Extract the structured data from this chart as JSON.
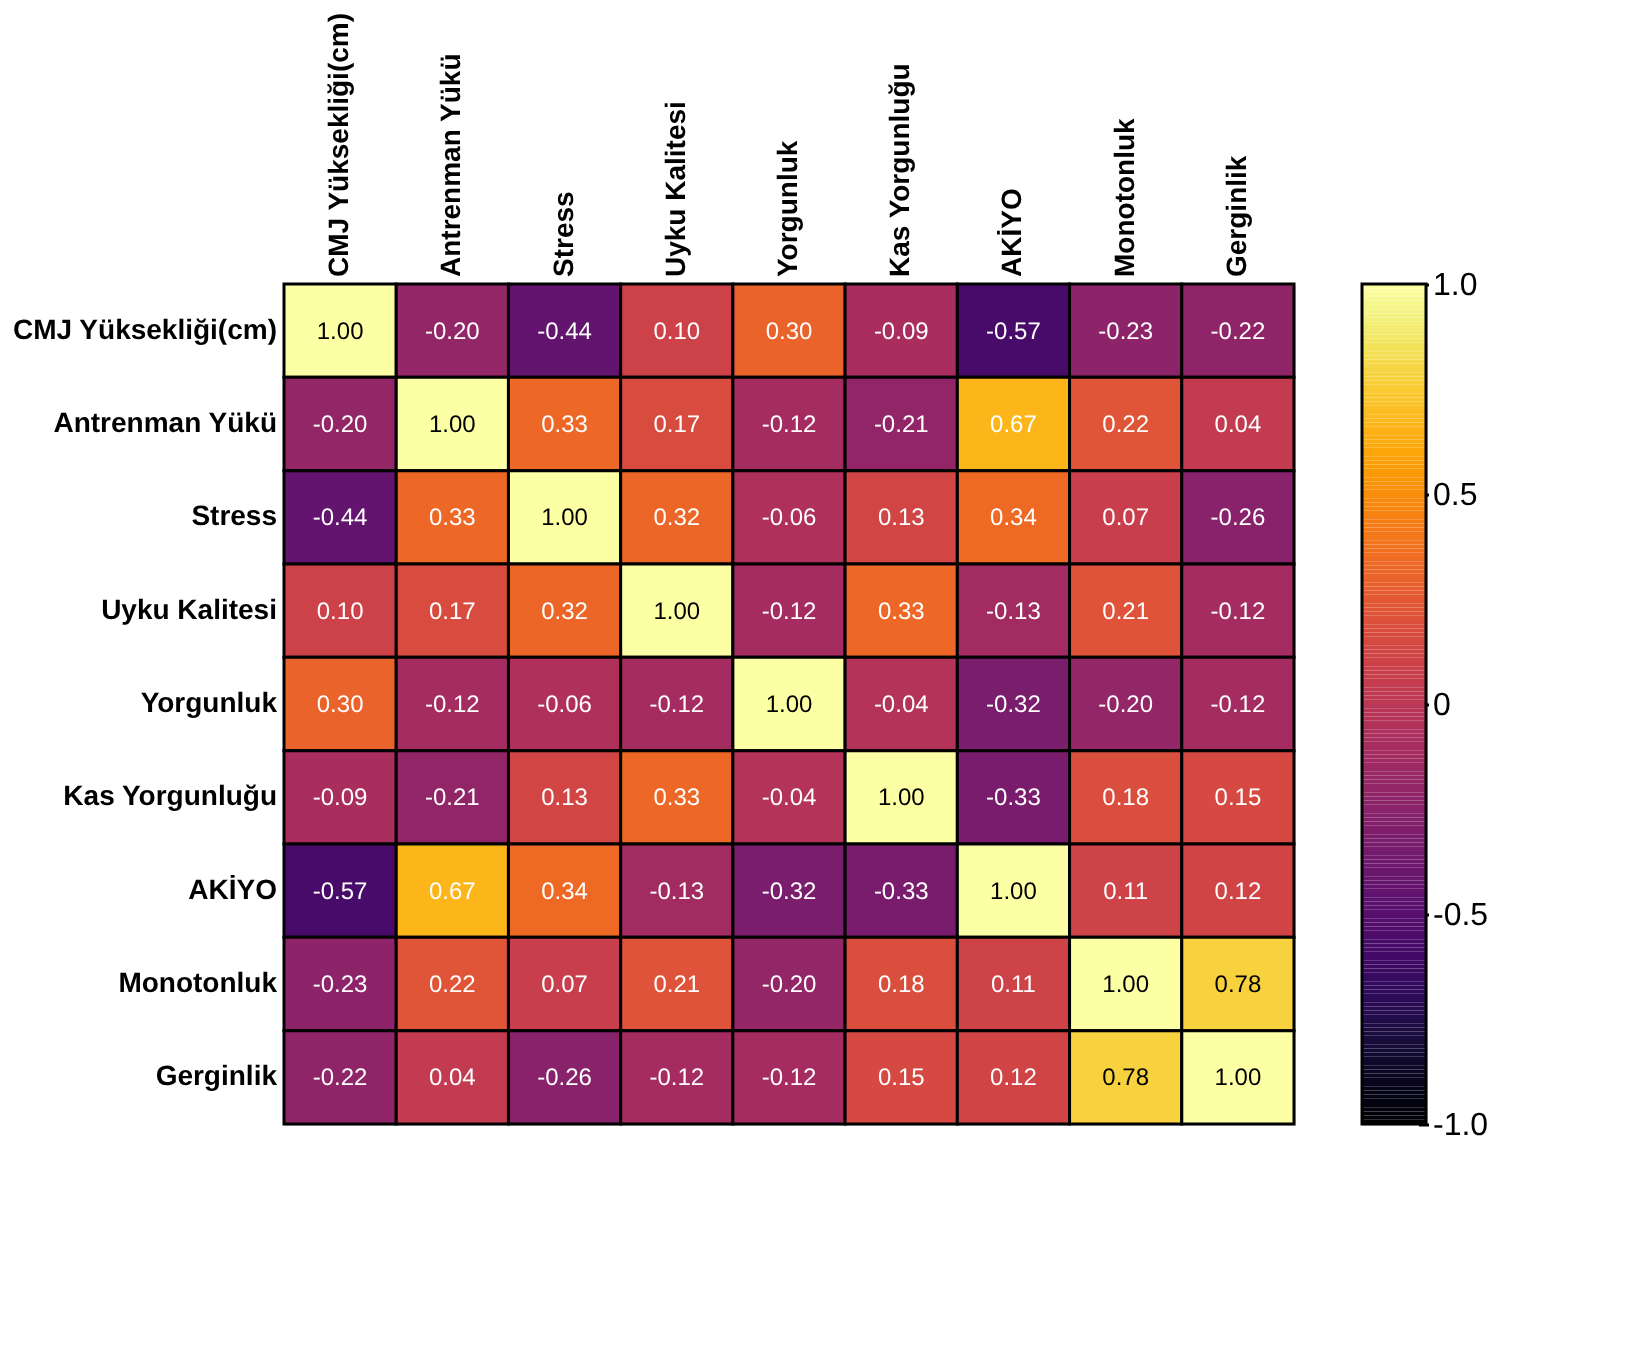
{
  "chart_data": {
    "type": "heatmap",
    "categories": [
      "CMJ Yüksekliği(cm)",
      "Antrenman Yükü",
      "Stress",
      "Uyku Kalitesi",
      "Yorgunluk",
      "Kas Yorgunluğu",
      "AKİYO",
      "Monotonluk",
      "Gerginlik"
    ],
    "y_categories": [
      "CMJ Yüksekliği(cm)",
      "Antrenman Yükü",
      "Stress",
      "Uyku Kalitesi",
      "Yorgunluk",
      "Kas Yorgunluğu",
      "AKİYO",
      "Monotonluk",
      "Gerginlik"
    ],
    "cells": [
      [
        1.0,
        -0.2,
        -0.44,
        0.1,
        0.3,
        -0.09,
        -0.57,
        -0.23,
        -0.22
      ],
      [
        -0.2,
        1.0,
        0.33,
        0.17,
        -0.12,
        -0.21,
        0.67,
        0.22,
        0.04
      ],
      [
        -0.44,
        0.33,
        1.0,
        0.32,
        -0.06,
        0.13,
        0.34,
        0.07,
        -0.26
      ],
      [
        0.1,
        0.17,
        0.32,
        1.0,
        -0.12,
        0.33,
        -0.13,
        0.21,
        -0.12
      ],
      [
        0.3,
        -0.12,
        -0.06,
        -0.12,
        1.0,
        -0.04,
        -0.32,
        -0.2,
        -0.12
      ],
      [
        -0.09,
        -0.21,
        0.13,
        0.33,
        -0.04,
        1.0,
        -0.33,
        0.18,
        0.15
      ],
      [
        -0.57,
        0.67,
        0.34,
        -0.13,
        -0.32,
        -0.33,
        1.0,
        0.11,
        0.12
      ],
      [
        -0.23,
        0.22,
        0.07,
        0.21,
        -0.2,
        0.18,
        0.11,
        1.0,
        0.78
      ],
      [
        -0.22,
        0.04,
        -0.26,
        -0.12,
        -0.12,
        0.15,
        0.12,
        0.78,
        1.0
      ]
    ],
    "cell_labels": [
      [
        "1.00",
        "-0.20",
        "-0.44",
        "0.10",
        "0.30",
        "-0.09",
        "-0.57",
        "-0.23",
        "-0.22"
      ],
      [
        "-0.20",
        "1.00",
        "0.33",
        "0.17",
        "-0.12",
        "-0.21",
        "0.67",
        "0.22",
        "0.04"
      ],
      [
        "-0.44",
        "0.33",
        "1.00",
        "0.32",
        "-0.06",
        "0.13",
        "0.34",
        "0.07",
        "-0.26"
      ],
      [
        "0.10",
        "0.17",
        "0.32",
        "1.00",
        "-0.12",
        "0.33",
        "-0.13",
        "0.21",
        "-0.12"
      ],
      [
        "0.30",
        "-0.12",
        "-0.06",
        "-0.12",
        "1.00",
        "-0.04",
        "-0.32",
        "-0.20",
        "-0.12"
      ],
      [
        "-0.09",
        "-0.21",
        "0.13",
        "0.33",
        "-0.04",
        "1.00",
        "-0.33",
        "0.18",
        "0.15"
      ],
      [
        "-0.57",
        "0.67",
        "0.34",
        "-0.13",
        "-0.32",
        "-0.33",
        "1.00",
        "0.11",
        "0.12"
      ],
      [
        "-0.23",
        "0.22",
        "0.07",
        "0.21",
        "-0.20",
        "0.18",
        "0.11",
        "1.00",
        "0.78"
      ],
      [
        "-0.22",
        "0.04",
        "-0.26",
        "-0.12",
        "-0.12",
        "0.15",
        "0.12",
        "0.78",
        "1.00"
      ]
    ],
    "clim": [
      -1.0,
      1.0
    ],
    "cticks": [
      {
        "value": 1.0,
        "label": "1.0"
      },
      0.5,
      0,
      -0.5,
      {
        "value": -1.0,
        "label": "-1.0"
      }
    ]
  }
}
